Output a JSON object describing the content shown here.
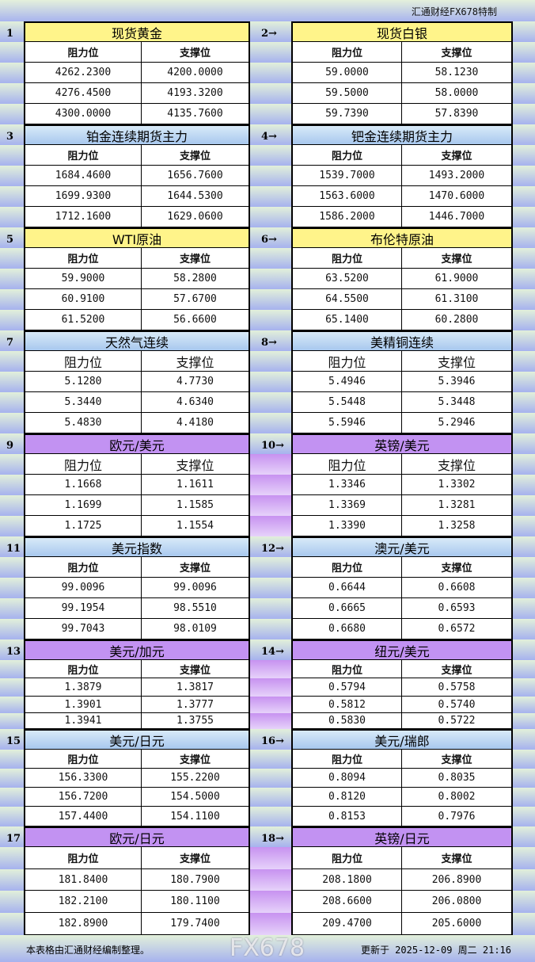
{
  "brand": "汇通财经FX678特制",
  "col_resist": "阻力位",
  "col_support": "支撑位",
  "arrow": "→",
  "sections": [
    {
      "num": "1",
      "title": "现货黄金",
      "color": "yellow",
      "rows": [
        [
          "4262.2300",
          "4200.0000"
        ],
        [
          "4276.4500",
          "4193.3200"
        ],
        [
          "4300.0000",
          "4135.7600"
        ]
      ]
    },
    {
      "num": "2",
      "title": "现货白银",
      "color": "yellow",
      "rows": [
        [
          "59.0000",
          "58.1230"
        ],
        [
          "59.5000",
          "58.0000"
        ],
        [
          "59.7390",
          "57.8390"
        ]
      ]
    },
    {
      "num": "3",
      "title": "铂金连续期货主力",
      "color": "blue",
      "rows": [
        [
          "1684.4600",
          "1656.7600"
        ],
        [
          "1699.9300",
          "1644.5300"
        ],
        [
          "1712.1600",
          "1629.0600"
        ]
      ]
    },
    {
      "num": "4",
      "title": "钯金连续期货主力",
      "color": "blue",
      "rows": [
        [
          "1539.7000",
          "1493.2000"
        ],
        [
          "1563.6000",
          "1470.6000"
        ],
        [
          "1586.2000",
          "1446.7000"
        ]
      ]
    },
    {
      "num": "5",
      "title": "WTI原油",
      "color": "yellow",
      "rows": [
        [
          "59.9000",
          "58.2800"
        ],
        [
          "60.9100",
          "57.6700"
        ],
        [
          "61.5200",
          "56.6600"
        ]
      ]
    },
    {
      "num": "6",
      "title": "布伦特原油",
      "color": "yellow",
      "rows": [
        [
          "63.5200",
          "61.9000"
        ],
        [
          "64.5500",
          "61.3100"
        ],
        [
          "65.1400",
          "60.2800"
        ]
      ]
    },
    {
      "num": "7",
      "title": "天然气连续",
      "color": "blue",
      "rows": [
        [
          "5.1280",
          "4.7730"
        ],
        [
          "5.3440",
          "4.6340"
        ],
        [
          "5.4830",
          "4.4180"
        ]
      ]
    },
    {
      "num": "8",
      "title": "美精铜连续",
      "color": "blue",
      "rows": [
        [
          "5.4946",
          "5.3946"
        ],
        [
          "5.5448",
          "5.3448"
        ],
        [
          "5.5946",
          "5.2946"
        ]
      ]
    },
    {
      "num": "9",
      "title": "欧元/美元",
      "color": "purple",
      "rows": [
        [
          "1.1668",
          "1.1611"
        ],
        [
          "1.1699",
          "1.1585"
        ],
        [
          "1.1725",
          "1.1554"
        ]
      ]
    },
    {
      "num": "10",
      "title": "英镑/美元",
      "color": "purple",
      "rows": [
        [
          "1.3346",
          "1.3302"
        ],
        [
          "1.3369",
          "1.3281"
        ],
        [
          "1.3390",
          "1.3258"
        ]
      ]
    },
    {
      "num": "11",
      "title": "美元指数",
      "color": "blue",
      "rows": [
        [
          "99.0096",
          "99.0096"
        ],
        [
          "99.1954",
          "98.5510"
        ],
        [
          "99.7043",
          "98.0109"
        ]
      ]
    },
    {
      "num": "12",
      "title": "澳元/美元",
      "color": "blue",
      "rows": [
        [
          "0.6644",
          "0.6608"
        ],
        [
          "0.6665",
          "0.6593"
        ],
        [
          "0.6680",
          "0.6572"
        ]
      ]
    },
    {
      "num": "13",
      "title": "美元/加元",
      "color": "purple",
      "rows": [
        [
          "1.3879",
          "1.3817"
        ],
        [
          "1.3901",
          "1.3777"
        ],
        [
          "1.3941",
          "1.3755"
        ]
      ]
    },
    {
      "num": "14",
      "title": "纽元/美元",
      "color": "purple",
      "rows": [
        [
          "0.5794",
          "0.5758"
        ],
        [
          "0.5812",
          "0.5740"
        ],
        [
          "0.5830",
          "0.5722"
        ]
      ]
    },
    {
      "num": "15",
      "title": "美元/日元",
      "color": "blue",
      "rows": [
        [
          "156.3300",
          "155.2200"
        ],
        [
          "156.7200",
          "154.5000"
        ],
        [
          "157.4400",
          "154.1100"
        ]
      ]
    },
    {
      "num": "16",
      "title": "美元/瑞郎",
      "color": "blue",
      "rows": [
        [
          "0.8094",
          "0.8035"
        ],
        [
          "0.8120",
          "0.8002"
        ],
        [
          "0.8153",
          "0.7976"
        ]
      ]
    },
    {
      "num": "17",
      "title": "欧元/日元",
      "color": "purple",
      "rows": [
        [
          "181.8400",
          "180.7900"
        ],
        [
          "182.2100",
          "180.1100"
        ],
        [
          "182.8900",
          "179.7400"
        ]
      ]
    },
    {
      "num": "18",
      "title": "英镑/日元",
      "color": "purple",
      "rows": [
        [
          "208.1800",
          "206.8900"
        ],
        [
          "208.6600",
          "206.0800"
        ],
        [
          "209.4700",
          "205.6000"
        ]
      ]
    }
  ],
  "footer": {
    "note": "本表格由汇通财经编制整理。",
    "updated": "更新于 2025-12-09 周二 21:16"
  },
  "watermark": "FX678"
}
